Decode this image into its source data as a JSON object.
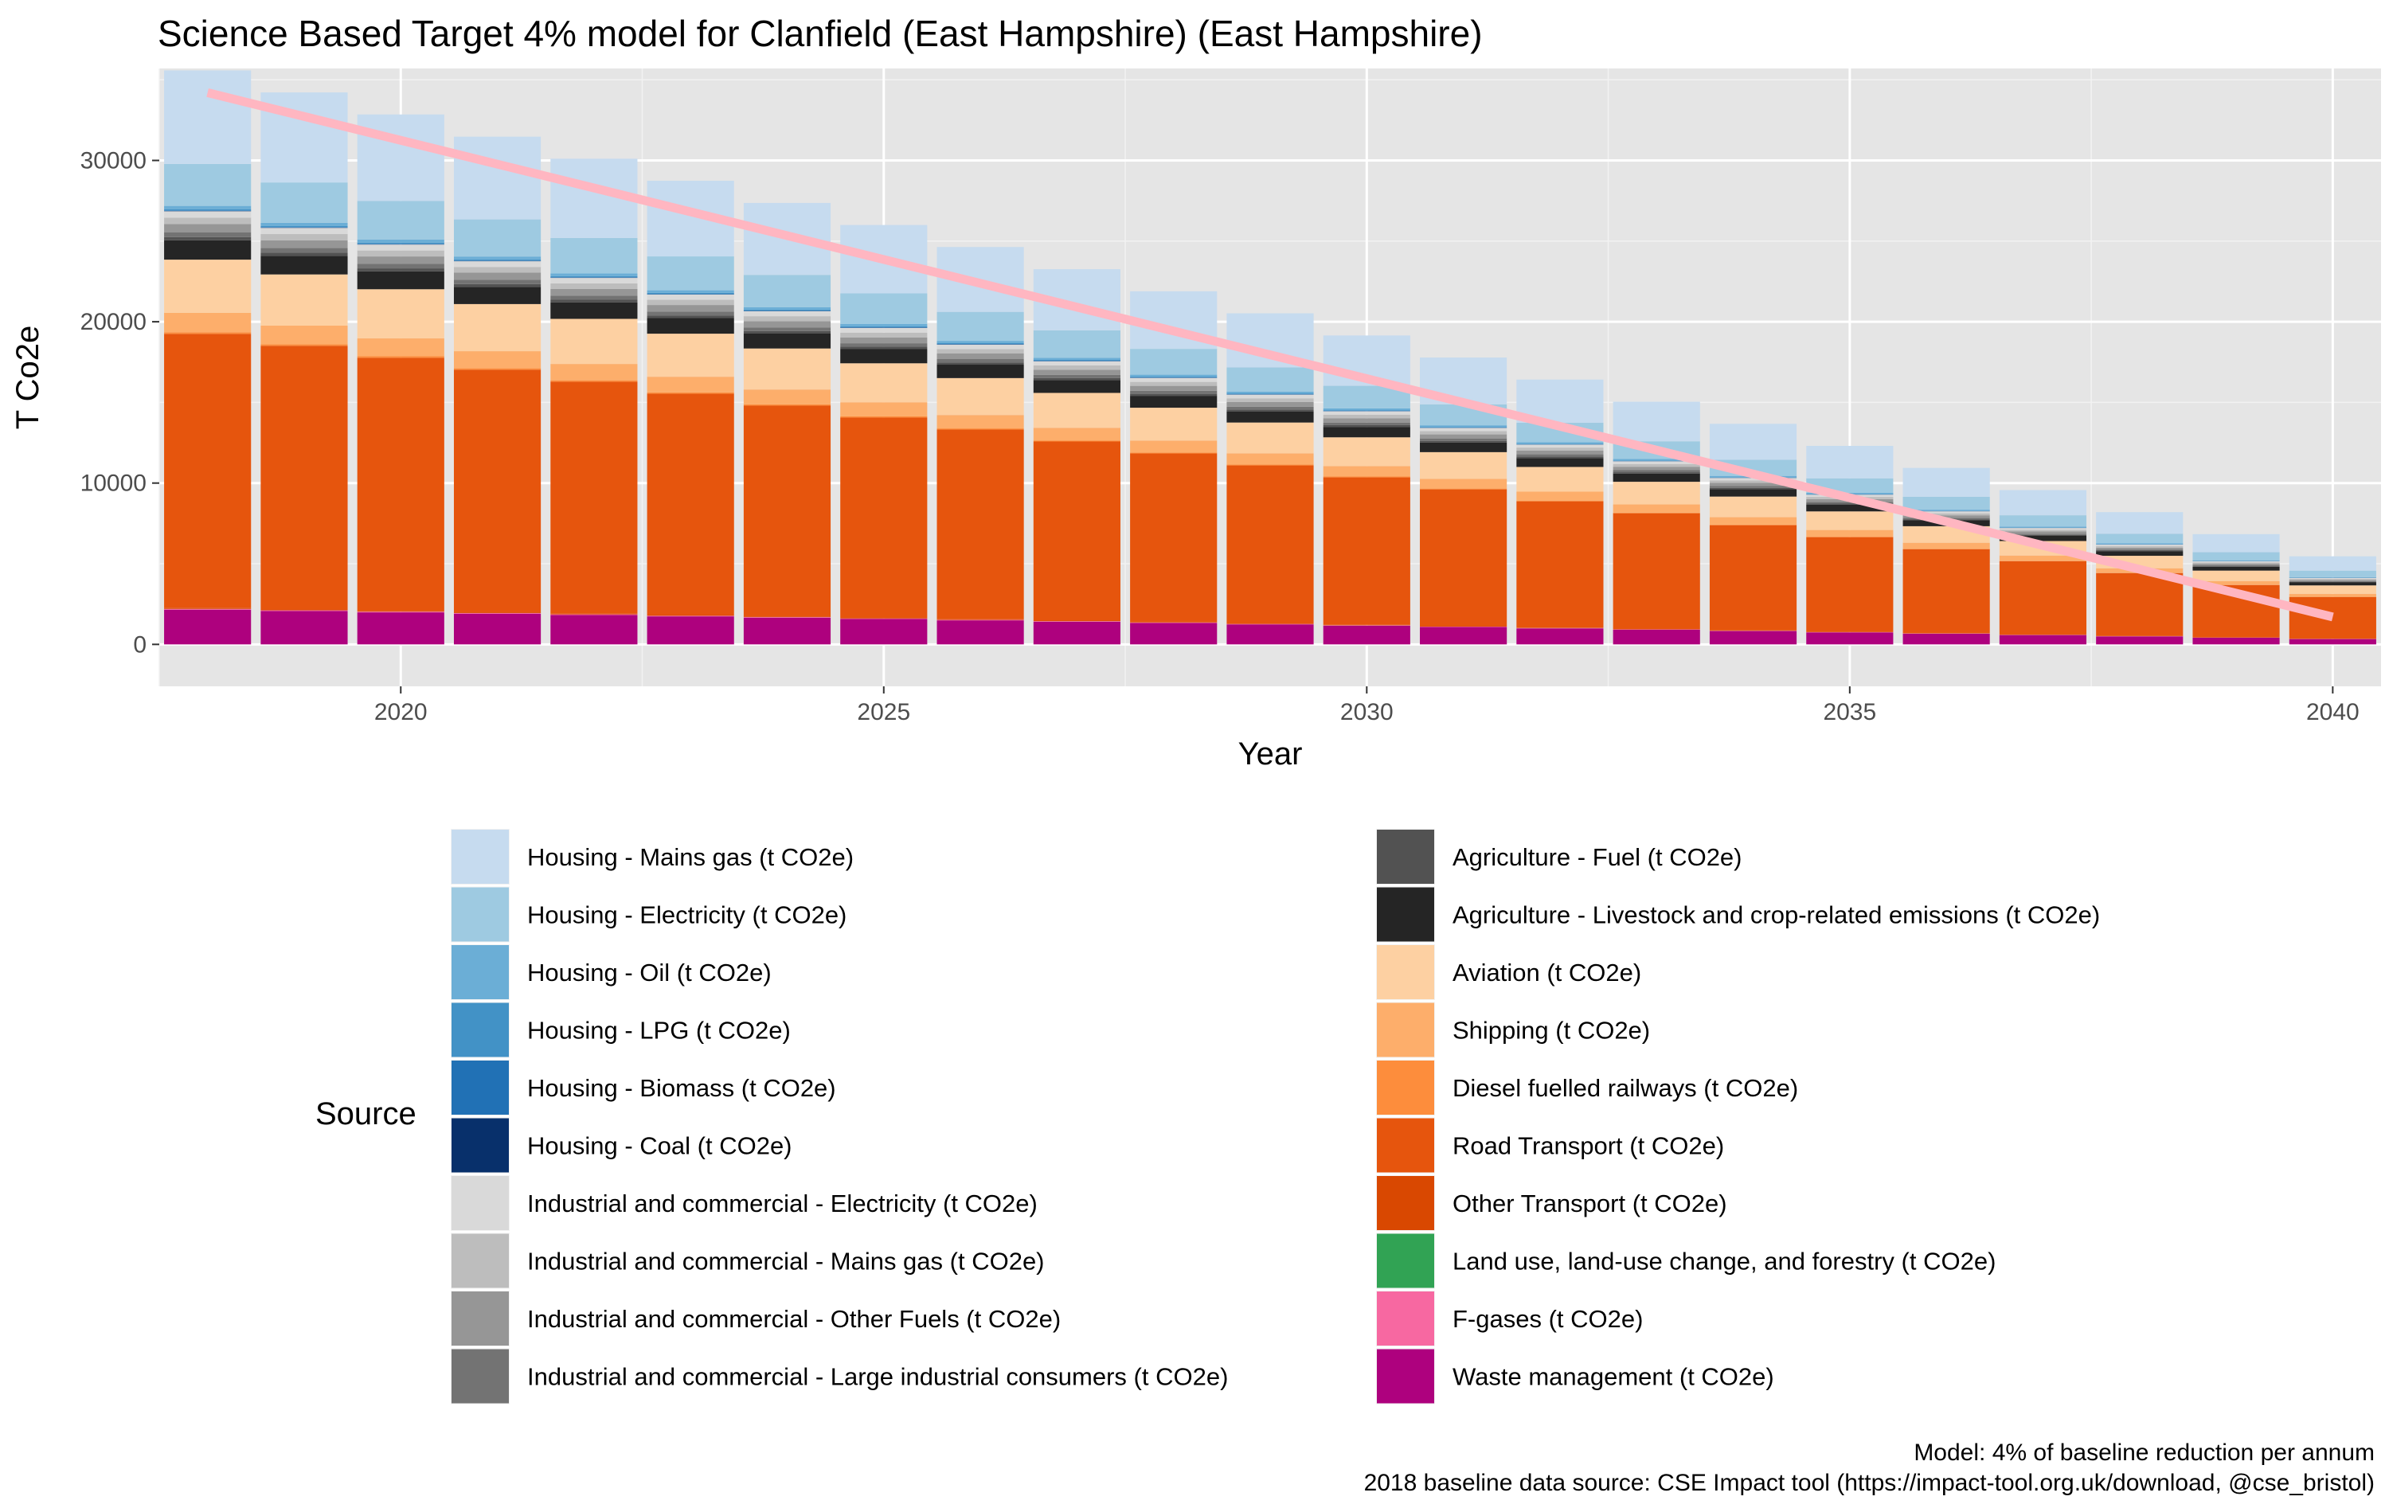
{
  "chart_data": {
    "type": "bar",
    "stacked": true,
    "title": "Science Based Target 4% model for Clanfield (East Hampshire) (East Hampshire)",
    "xlabel": "Year",
    "ylabel": "T Co2e",
    "xlim": [
      2017.5,
      2040.5
    ],
    "ylim": [
      -2600,
      35700
    ],
    "x_ticks": [
      "2020",
      "2025",
      "2030",
      "2035",
      "2040"
    ],
    "y_ticks": [
      "0",
      "10000",
      "20000",
      "30000"
    ],
    "grid": true,
    "legend_title": "Source",
    "legend_position": "bottom",
    "categories": [
      "2018",
      "2019",
      "2020",
      "2021",
      "2022",
      "2023",
      "2024",
      "2025",
      "2026",
      "2027",
      "2028",
      "2029",
      "2030",
      "2031",
      "2032",
      "2033",
      "2034",
      "2035",
      "2036",
      "2037",
      "2038",
      "2039",
      "2040"
    ],
    "series": [
      {
        "name": "Housing - Mains gas (t CO2e)",
        "color": "#c6dbef",
        "values": [
          5800,
          5580,
          5360,
          5130,
          4910,
          4690,
          4460,
          4240,
          4020,
          3790,
          3570,
          3350,
          3120,
          2900,
          2680,
          2450,
          2230,
          2010,
          1790,
          1560,
          1340,
          1120,
          890
        ]
      },
      {
        "name": "Housing - Electricity (t CO2e)",
        "color": "#9ecae1",
        "values": [
          2600,
          2500,
          2400,
          2300,
          2200,
          2100,
          2000,
          1900,
          1800,
          1700,
          1600,
          1500,
          1400,
          1300,
          1200,
          1100,
          1000,
          900,
          800,
          700,
          600,
          500,
          400
        ]
      },
      {
        "name": "Housing - Oil (t CO2e)",
        "color": "#6baed6",
        "values": [
          200,
          192,
          185,
          177,
          169,
          162,
          154,
          146,
          138,
          131,
          123,
          115,
          108,
          100,
          92,
          85,
          77,
          69,
          62,
          54,
          46,
          38,
          31
        ]
      },
      {
        "name": "Housing - LPG (t CO2e)",
        "color": "#4292c6",
        "values": [
          80,
          77,
          74,
          71,
          68,
          65,
          62,
          58,
          55,
          52,
          49,
          46,
          43,
          40,
          37,
          34,
          31,
          28,
          25,
          22,
          18,
          15,
          12
        ]
      },
      {
        "name": "Housing - Biomass (t CO2e)",
        "color": "#2171b5",
        "values": [
          30,
          29,
          28,
          27,
          25,
          24,
          23,
          22,
          21,
          20,
          18,
          17,
          16,
          15,
          14,
          13,
          12,
          10,
          9,
          8,
          7,
          6,
          5
        ]
      },
      {
        "name": "Housing - Coal (t CO2e)",
        "color": "#08306b",
        "values": [
          20,
          19,
          18,
          18,
          17,
          16,
          15,
          15,
          14,
          13,
          12,
          12,
          11,
          10,
          9,
          8,
          8,
          7,
          6,
          5,
          5,
          4,
          3
        ]
      },
      {
        "name": "Industrial and commercial - Electricity (t CO2e)",
        "color": "#d9d9d9",
        "values": [
          400,
          385,
          369,
          354,
          338,
          323,
          308,
          292,
          277,
          262,
          246,
          231,
          215,
          200,
          185,
          169,
          154,
          138,
          123,
          108,
          92,
          77,
          62
        ]
      },
      {
        "name": "Industrial and commercial - Mains gas (t CO2e)",
        "color": "#bdbdbd",
        "values": [
          400,
          385,
          369,
          354,
          338,
          323,
          308,
          292,
          277,
          262,
          246,
          231,
          215,
          200,
          185,
          169,
          154,
          138,
          123,
          108,
          92,
          77,
          62
        ]
      },
      {
        "name": "Industrial and commercial - Other Fuels (t CO2e)",
        "color": "#969696",
        "values": [
          500,
          481,
          462,
          442,
          423,
          404,
          385,
          365,
          346,
          327,
          308,
          288,
          269,
          250,
          231,
          212,
          192,
          173,
          154,
          135,
          115,
          96,
          77
        ]
      },
      {
        "name": "Industrial and commercial - Large industrial consumers (t CO2e)",
        "color": "#737373",
        "values": [
          300,
          288,
          277,
          265,
          254,
          242,
          231,
          219,
          208,
          196,
          185,
          173,
          162,
          150,
          138,
          127,
          115,
          104,
          92,
          81,
          69,
          58,
          46
        ]
      },
      {
        "name": "Agriculture - Fuel (t CO2e)",
        "color": "#525252",
        "values": [
          200,
          192,
          185,
          177,
          169,
          162,
          154,
          146,
          138,
          131,
          123,
          115,
          108,
          100,
          92,
          85,
          77,
          69,
          62,
          54,
          46,
          38,
          31
        ]
      },
      {
        "name": "Agriculture - Livestock and crop-related emissions (t CO2e)",
        "color": "#252525",
        "values": [
          1200,
          1154,
          1108,
          1062,
          1015,
          969,
          923,
          877,
          831,
          785,
          738,
          692,
          646,
          600,
          554,
          508,
          462,
          415,
          369,
          323,
          277,
          231,
          185
        ]
      },
      {
        "name": "Aviation (t CO2e)",
        "color": "#fdd0a2",
        "values": [
          3300,
          3174,
          3048,
          2921,
          2795,
          2668,
          2542,
          2415,
          2289,
          2162,
          2036,
          1910,
          1784,
          1657,
          1531,
          1404,
          1278,
          1151,
          1025,
          898,
          772,
          646,
          520
        ]
      },
      {
        "name": "Shipping (t CO2e)",
        "color": "#fdae6b",
        "values": [
          1200,
          1154,
          1108,
          1062,
          1015,
          969,
          923,
          877,
          831,
          785,
          738,
          692,
          646,
          600,
          554,
          508,
          462,
          415,
          369,
          323,
          277,
          231,
          185
        ]
      },
      {
        "name": "Diesel fuelled railways (t CO2e)",
        "color": "#fd8d3c",
        "values": [
          100,
          96,
          92,
          88,
          85,
          81,
          77,
          73,
          69,
          65,
          62,
          58,
          54,
          50,
          46,
          42,
          38,
          35,
          31,
          27,
          23,
          19,
          15
        ]
      },
      {
        "name": "Road Transport (t CO2e)",
        "color": "#e6550d",
        "values": [
          17000,
          16345,
          15690,
          15035,
          14380,
          13725,
          13070,
          12415,
          11760,
          11105,
          10450,
          9795,
          9140,
          8485,
          7830,
          7175,
          6520,
          5865,
          5210,
          4555,
          3900,
          3245,
          2590
        ]
      },
      {
        "name": "Other Transport (t CO2e)",
        "color": "#d94801",
        "values": [
          50,
          48,
          46,
          44,
          42,
          40,
          38,
          37,
          35,
          33,
          31,
          29,
          27,
          25,
          23,
          21,
          19,
          17,
          15,
          13,
          12,
          10,
          8
        ]
      },
      {
        "name": "Land use, land-use change, and forestry (t CO2e)",
        "color": "#31a354",
        "values": [
          -1300,
          -1360,
          -1420,
          -1480,
          -1540,
          -1600,
          -1650,
          -1700,
          -1760,
          -1810,
          -1870,
          -1920,
          -1970,
          -2030,
          -2080,
          -2130,
          -2180,
          -2240,
          -2290,
          -2340,
          -2400,
          -2450,
          -2500
        ]
      },
      {
        "name": "F-gases (t CO2e)",
        "color": "#f768a1",
        "values": [
          50,
          48,
          46,
          44,
          42,
          40,
          38,
          37,
          35,
          33,
          31,
          29,
          27,
          25,
          23,
          21,
          19,
          17,
          15,
          13,
          12,
          10,
          8
        ]
      },
      {
        "name": "Waste management (t CO2e)",
        "color": "#ae017e",
        "values": [
          2150,
          2068,
          1985,
          1902,
          1820,
          1737,
          1654,
          1571,
          1489,
          1406,
          1323,
          1240,
          1158,
          1075,
          992,
          909,
          827,
          744,
          661,
          578,
          496,
          413,
          331
        ]
      }
    ],
    "stack_order_bottom_to_top": [
      "Waste management (t CO2e)",
      "F-gases (t CO2e)",
      "Other Transport (t CO2e)",
      "Road Transport (t CO2e)",
      "Diesel fuelled railways (t CO2e)",
      "Shipping (t CO2e)",
      "Aviation (t CO2e)",
      "Agriculture - Livestock and crop-related emissions (t CO2e)",
      "Agriculture - Fuel (t CO2e)",
      "Industrial and commercial - Large industrial consumers (t CO2e)",
      "Industrial and commercial - Other Fuels (t CO2e)",
      "Industrial and commercial - Mains gas (t CO2e)",
      "Industrial and commercial - Electricity (t CO2e)",
      "Housing - Coal (t CO2e)",
      "Housing - Biomass (t CO2e)",
      "Housing - LPG (t CO2e)",
      "Housing - Oil (t CO2e)",
      "Housing - Electricity (t CO2e)",
      "Housing - Mains gas (t CO2e)"
    ],
    "target_line": {
      "color": "#ffb6c1",
      "x": [
        2018,
        2040
      ],
      "y": [
        34200,
        1700
      ]
    }
  },
  "caption": {
    "line1": "Model: 4% of baseline reduction per annum",
    "line2": "2018 baseline data source: CSE Impact tool (https://impact-tool.org.uk/download, @cse_bristol)"
  },
  "colors": {
    "panel_background": "#e5e5e5",
    "grid_major": "#ffffff"
  }
}
